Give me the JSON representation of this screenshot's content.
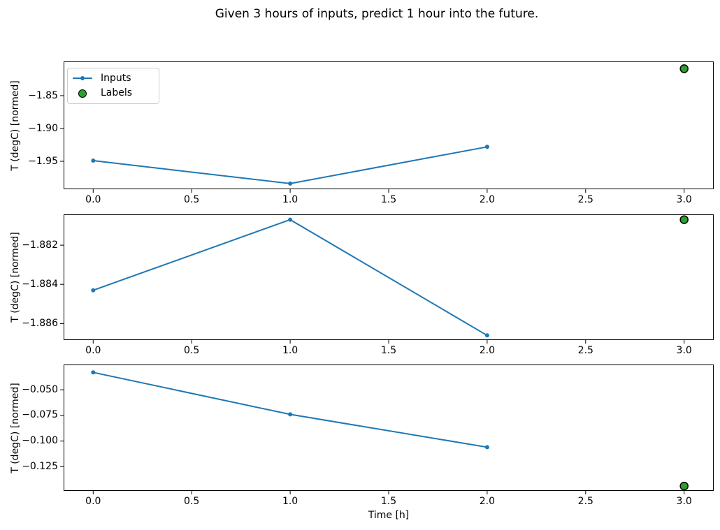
{
  "figure": {
    "title": "Given 3 hours of inputs, predict 1 hour into the future.",
    "xlabel": "Time [h]",
    "legend": {
      "inputs": "Inputs",
      "labels": "Labels"
    }
  },
  "colors": {
    "inputs": "#1f77b4",
    "labels_fill": "#2ca02c",
    "labels_edge": "#000000",
    "axis": "#000000",
    "legend_border": "#cccccc"
  },
  "chart_data": [
    {
      "type": "line",
      "ylabel": "T (degC) [normed]",
      "series": [
        {
          "name": "Inputs",
          "style": "line-with-dot-markers",
          "x": [
            0,
            1,
            2
          ],
          "y": [
            -1.949,
            -1.984,
            -1.928
          ]
        },
        {
          "name": "Labels",
          "style": "scatter-circle",
          "x": [
            3
          ],
          "y": [
            -1.809
          ]
        }
      ],
      "xlim": [
        -0.15,
        3.15
      ],
      "ylim": [
        -1.9926,
        -1.7979
      ],
      "xticks": [
        0,
        0.5,
        1,
        1.5,
        2,
        2.5,
        3
      ],
      "xtick_labels": [
        "0.0",
        "0.5",
        "1.0",
        "1.5",
        "2.0",
        "2.5",
        "3.0"
      ],
      "yticks": [
        -1.85,
        -1.9,
        -1.95
      ],
      "ytick_labels": [
        "−1.85",
        "−1.90",
        "−1.95"
      ],
      "grid": false,
      "legend": true,
      "legend_position": "upper left"
    },
    {
      "type": "line",
      "ylabel": "T (degC) [normed]",
      "series": [
        {
          "name": "Inputs",
          "style": "line-with-dot-markers",
          "x": [
            0,
            1,
            2
          ],
          "y": [
            -1.8843,
            -1.8807,
            -1.8866
          ]
        },
        {
          "name": "Labels",
          "style": "scatter-circle",
          "x": [
            3
          ],
          "y": [
            -1.8807
          ]
        }
      ],
      "xlim": [
        -0.15,
        3.15
      ],
      "ylim": [
        -1.88684,
        -1.88043
      ],
      "xticks": [
        0,
        0.5,
        1,
        1.5,
        2,
        2.5,
        3
      ],
      "xtick_labels": [
        "0.0",
        "0.5",
        "1.0",
        "1.5",
        "2.0",
        "2.5",
        "3.0"
      ],
      "yticks": [
        -1.882,
        -1.884,
        -1.886
      ],
      "ytick_labels": [
        "−1.882",
        "−1.884",
        "−1.886"
      ],
      "grid": false,
      "legend": false
    },
    {
      "type": "line",
      "ylabel": "T (degC) [normed]",
      "series": [
        {
          "name": "Inputs",
          "style": "line-with-dot-markers",
          "x": [
            0,
            1,
            2
          ],
          "y": [
            -0.033,
            -0.074,
            -0.106
          ]
        },
        {
          "name": "Labels",
          "style": "scatter-circle",
          "x": [
            3
          ],
          "y": [
            -0.144
          ]
        }
      ],
      "xlim": [
        -0.15,
        3.15
      ],
      "ylim": [
        -0.1487,
        -0.0253
      ],
      "xticks": [
        0,
        0.5,
        1,
        1.5,
        2,
        2.5,
        3
      ],
      "xtick_labels": [
        "0.0",
        "0.5",
        "1.0",
        "1.5",
        "2.0",
        "2.5",
        "3.0"
      ],
      "yticks": [
        -0.05,
        -0.075,
        -0.1,
        -0.125
      ],
      "ytick_labels": [
        "−0.050",
        "−0.075",
        "−0.100",
        "−0.125"
      ],
      "grid": false,
      "legend": false
    }
  ]
}
